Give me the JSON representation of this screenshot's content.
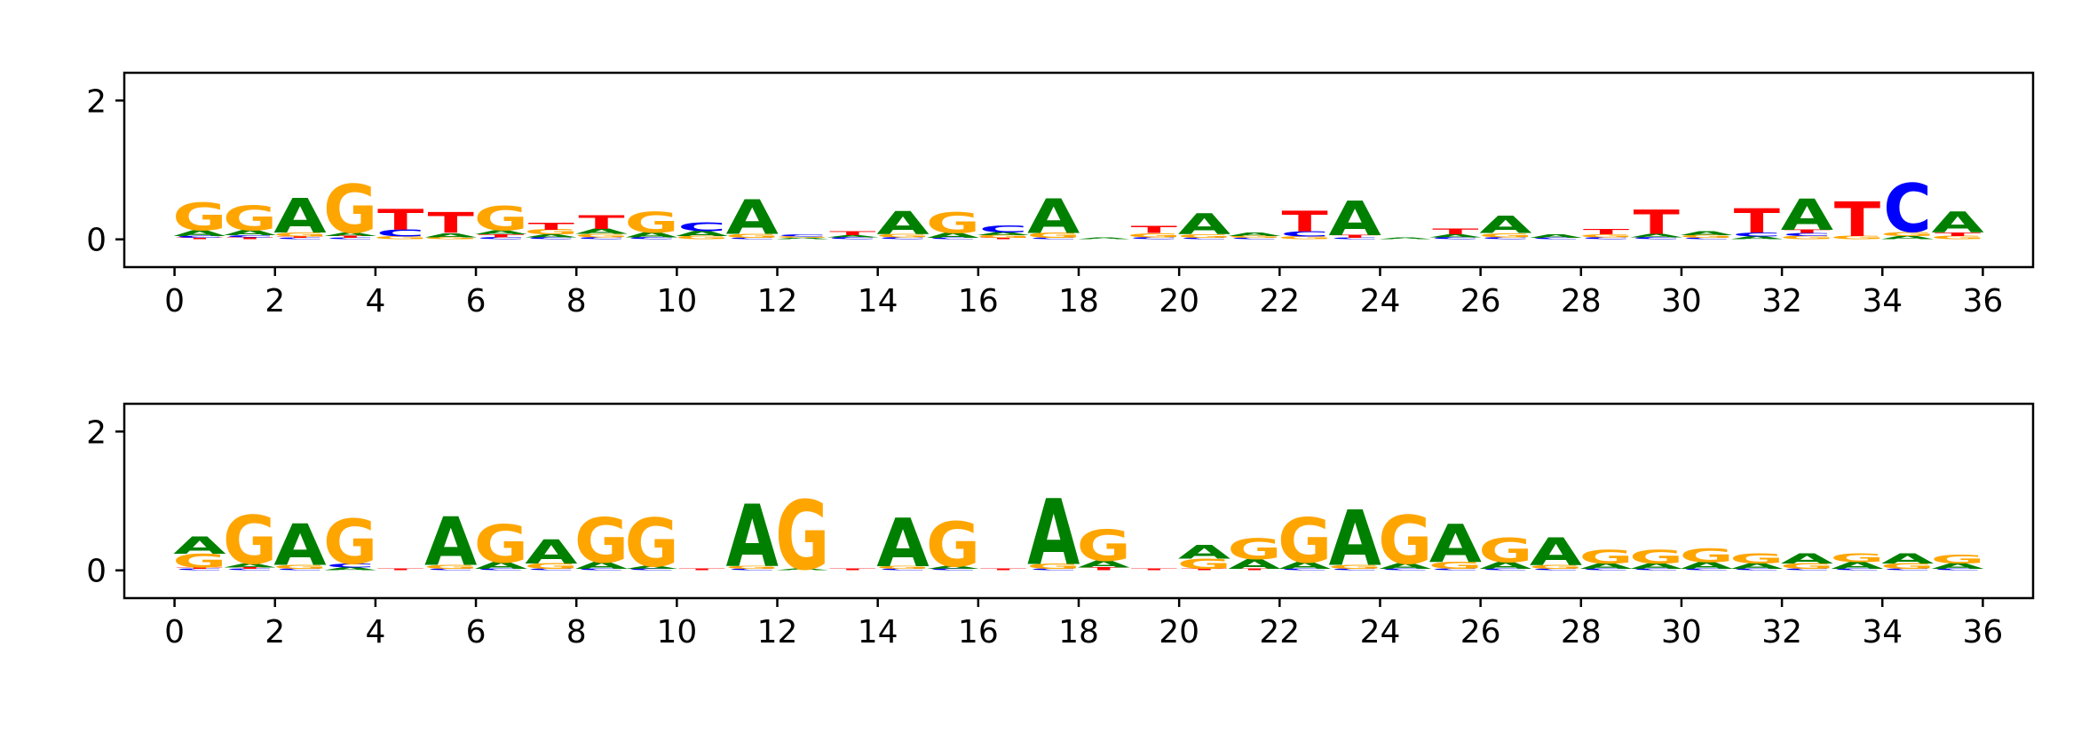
{
  "colors": {
    "A": "#008000",
    "C": "#0000ff",
    "G": "#ffa500",
    "T": "#ff0000"
  },
  "chart_data": [
    {
      "type": "sequence-logo",
      "title": "",
      "xlabel": "",
      "ylabel": "",
      "xlim": [
        -1,
        37
      ],
      "ylim": [
        -0.4,
        2.4
      ],
      "xticks": [
        0,
        2,
        4,
        6,
        8,
        10,
        12,
        14,
        16,
        18,
        20,
        22,
        24,
        26,
        28,
        30,
        32,
        34,
        36
      ],
      "yticks": [
        0,
        2
      ],
      "positions": [
        0.5,
        1.5,
        2.5,
        3.5,
        4.5,
        5.5,
        6.5,
        7.5,
        8.5,
        9.5,
        10.5,
        11.5,
        12.5,
        13.5,
        14.5,
        15.5,
        16.5,
        17.5,
        18.5,
        19.5,
        20.5,
        21.5,
        22.5,
        23.5,
        24.5,
        25.5,
        26.5,
        27.5,
        28.5,
        29.5,
        30.5,
        31.5,
        32.5,
        33.5,
        34.5,
        35.5
      ],
      "letters": [
        {
          "T": 0.02,
          "C": 0.03,
          "A": 0.08,
          "G": 0.4
        },
        {
          "T": 0.03,
          "C": 0.03,
          "A": 0.07,
          "G": 0.36
        },
        {
          "C": 0.02,
          "T": 0.02,
          "G": 0.06,
          "A": 0.5
        },
        {
          "C": 0.02,
          "T": 0.03,
          "A": 0.05,
          "G": 0.7
        },
        {
          "G": 0.04,
          "C": 0.1,
          "T": 0.3
        },
        {
          "G": 0.03,
          "A": 0.06,
          "T": 0.3
        },
        {
          "C": 0.03,
          "T": 0.04,
          "A": 0.06,
          "G": 0.35
        },
        {
          "C": 0.03,
          "A": 0.04,
          "G": 0.07,
          "T": 0.1
        },
        {
          "C": 0.03,
          "G": 0.05,
          "A": 0.07,
          "T": 0.2
        },
        {
          "C": 0.03,
          "A": 0.07,
          "G": 0.3
        },
        {
          "G": 0.05,
          "A": 0.07,
          "C": 0.12
        },
        {
          "C": 0.02,
          "G": 0.06,
          "A": 0.5
        },
        {
          "A": 0.02,
          "G": 0.02,
          "C": 0.03
        },
        {
          "C": 0.03,
          "A": 0.03,
          "T": 0.06
        },
        {
          "C": 0.03,
          "G": 0.05,
          "A": 0.33
        },
        {
          "C": 0.02,
          "A": 0.07,
          "G": 0.3
        },
        {
          "T": 0.02,
          "G": 0.04,
          "A": 0.04,
          "C": 0.1
        },
        {
          "C": 0.02,
          "G": 0.07,
          "A": 0.5
        },
        {
          "A": 0.02
        },
        {
          "C": 0.03,
          "G": 0.06,
          "T": 0.1
        },
        {
          "C": 0.02,
          "G": 0.05,
          "A": 0.3
        },
        {
          "C": 0.02,
          "G": 0.03,
          "A": 0.05
        },
        {
          "G": 0.04,
          "C": 0.07,
          "T": 0.3
        },
        {
          "C": 0.02,
          "T": 0.04,
          "A": 0.5
        },
        {
          "A": 0.02
        },
        {
          "C": 0.03,
          "A": 0.04,
          "T": 0.08
        },
        {
          "C": 0.03,
          "G": 0.06,
          "A": 0.25
        },
        {
          "C": 0.02,
          "A": 0.05
        },
        {
          "C": 0.03,
          "G": 0.04,
          "T": 0.07
        },
        {
          "C": 0.03,
          "A": 0.05,
          "T": 0.35
        },
        {
          "C": 0.02,
          "G": 0.04,
          "A": 0.06
        },
        {
          "A": 0.04,
          "C": 0.06,
          "T": 0.35
        },
        {
          "G": 0.05,
          "C": 0.04,
          "T": 0.05,
          "A": 0.45
        },
        {
          "G": 0.05,
          "T": 0.5
        },
        {
          "A": 0.05,
          "G": 0.06,
          "C": 0.7
        },
        {
          "G": 0.05,
          "T": 0.05,
          "A": 0.3
        }
      ]
    },
    {
      "type": "sequence-logo",
      "title": "",
      "xlabel": "",
      "ylabel": "",
      "xlim": [
        -1,
        37
      ],
      "ylim": [
        -0.4,
        2.4
      ],
      "xticks": [
        0,
        2,
        4,
        6,
        8,
        10,
        12,
        14,
        16,
        18,
        20,
        22,
        24,
        26,
        28,
        30,
        32,
        34,
        36
      ],
      "yticks": [
        0,
        2
      ],
      "positions": [
        0.5,
        1.5,
        2.5,
        3.5,
        4.5,
        5.5,
        6.5,
        7.5,
        8.5,
        9.5,
        10.5,
        11.5,
        12.5,
        13.5,
        14.5,
        15.5,
        16.5,
        17.5,
        18.5,
        19.5,
        20.5,
        21.5,
        22.5,
        23.5,
        24.5,
        25.5,
        26.5,
        27.5,
        28.5,
        29.5,
        30.5,
        31.5,
        32.5,
        33.5,
        34.5,
        35.5
      ],
      "letters": [
        {
          "C": 0.02,
          "T": 0.02,
          "G": 0.2,
          "A": 0.25
        },
        {
          "C": 0.02,
          "T": 0.02,
          "A": 0.06,
          "G": 0.7
        },
        {
          "C": 0.02,
          "G": 0.06,
          "A": 0.6
        },
        {
          "A": 0.04,
          "C": 0.06,
          "G": 0.65
        },
        {
          "T": 0.02
        },
        {
          "C": 0.02,
          "G": 0.06,
          "A": 0.7
        },
        {
          "C": 0.02,
          "A": 0.1,
          "G": 0.55
        },
        {
          "C": 0.02,
          "G": 0.08,
          "A": 0.35
        },
        {
          "C": 0.02,
          "A": 0.1,
          "G": 0.65
        },
        {
          "C": 0.02,
          "A": 0.04,
          "G": 0.7
        },
        {
          "T": 0.02
        },
        {
          "C": 0.02,
          "G": 0.04,
          "A": 0.9
        },
        {
          "A": 0.02,
          "G": 1.0
        },
        {
          "T": 0.02
        },
        {
          "C": 0.02,
          "G": 0.04,
          "A": 0.7
        },
        {
          "C": 0.02,
          "A": 0.04,
          "G": 0.65
        },
        {
          "T": 0.02
        },
        {
          "C": 0.02,
          "G": 0.07,
          "A": 0.95
        },
        {
          "T": 0.04,
          "A": 0.1,
          "G": 0.45
        },
        {
          "T": 0.02
        },
        {
          "T": 0.02,
          "G": 0.15,
          "A": 0.2
        },
        {
          "T": 0.02,
          "A": 0.14,
          "G": 0.3
        },
        {
          "C": 0.02,
          "A": 0.1,
          "G": 0.65
        },
        {
          "C": 0.02,
          "G": 0.06,
          "A": 0.8
        },
        {
          "C": 0.02,
          "A": 0.08,
          "G": 0.7
        },
        {
          "C": 0.02,
          "G": 0.1,
          "A": 0.55
        },
        {
          "C": 0.02,
          "A": 0.1,
          "G": 0.35
        },
        {
          "C": 0.02,
          "G": 0.06,
          "A": 0.4
        },
        {
          "C": 0.02,
          "A": 0.08,
          "G": 0.2
        },
        {
          "C": 0.02,
          "A": 0.08,
          "G": 0.2
        },
        {
          "C": 0.02,
          "A": 0.1,
          "G": 0.2
        },
        {
          "C": 0.02,
          "A": 0.08,
          "G": 0.15
        },
        {
          "C": 0.02,
          "G": 0.08,
          "A": 0.15
        },
        {
          "C": 0.02,
          "A": 0.1,
          "G": 0.12
        },
        {
          "C": 0.02,
          "G": 0.08,
          "A": 0.15
        },
        {
          "C": 0.02,
          "A": 0.08,
          "G": 0.12
        }
      ]
    }
  ]
}
